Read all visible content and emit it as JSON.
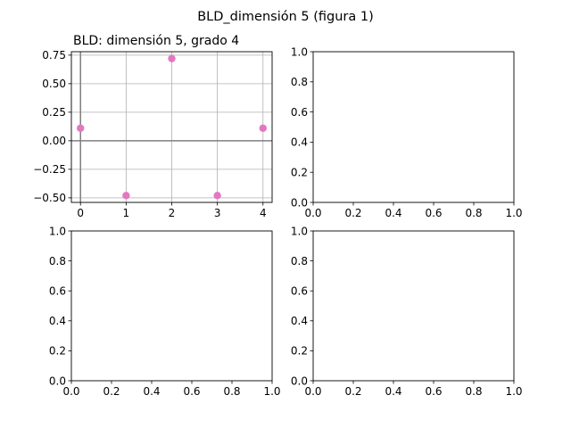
{
  "figure": {
    "suptitle": "BLD_dimensión 5 (figura 1)",
    "background": "#ffffff"
  },
  "chart_data": [
    {
      "type": "scatter",
      "title": "BLD: dimensión 5, grado 4",
      "grid": true,
      "reference_lines": {
        "x": 0,
        "y": 0,
        "color": "#808080"
      },
      "xlim": [
        -0.2,
        4.2
      ],
      "ylim": [
        -0.54,
        0.78
      ],
      "xticks": [
        0,
        1,
        2,
        3,
        4
      ],
      "xtick_labels": [
        "0",
        "1",
        "2",
        "3",
        "4"
      ],
      "yticks": [
        -0.5,
        -0.25,
        0.0,
        0.25,
        0.5,
        0.75
      ],
      "ytick_labels": [
        "−0.50",
        "−0.25",
        "0.00",
        "0.25",
        "0.50",
        "0.75"
      ],
      "series": [
        {
          "color": "#e377c2",
          "x": [
            0,
            1,
            2,
            3,
            4
          ],
          "y": [
            0.11,
            -0.48,
            0.72,
            -0.48,
            0.11
          ]
        }
      ]
    },
    {
      "type": "scatter",
      "empty": true,
      "xlim": [
        0,
        1
      ],
      "ylim": [
        0,
        1
      ],
      "xticks": [
        0,
        0.2,
        0.4,
        0.6,
        0.8,
        1.0
      ],
      "xtick_labels": [
        "0.0",
        "0.2",
        "0.4",
        "0.6",
        "0.8",
        "1.0"
      ],
      "yticks": [
        0,
        0.2,
        0.4,
        0.6,
        0.8,
        1.0
      ],
      "ytick_labels": [
        "0.0",
        "0.2",
        "0.4",
        "0.6",
        "0.8",
        "1.0"
      ],
      "series": []
    },
    {
      "type": "scatter",
      "empty": true,
      "xlim": [
        0,
        1
      ],
      "ylim": [
        0,
        1
      ],
      "xticks": [
        0,
        0.2,
        0.4,
        0.6,
        0.8,
        1.0
      ],
      "xtick_labels": [
        "0.0",
        "0.2",
        "0.4",
        "0.6",
        "0.8",
        "1.0"
      ],
      "yticks": [
        0,
        0.2,
        0.4,
        0.6,
        0.8,
        1.0
      ],
      "ytick_labels": [
        "0.0",
        "0.2",
        "0.4",
        "0.6",
        "0.8",
        "1.0"
      ],
      "series": []
    },
    {
      "type": "scatter",
      "empty": true,
      "xlim": [
        0,
        1
      ],
      "ylim": [
        0,
        1
      ],
      "xticks": [
        0,
        0.2,
        0.4,
        0.6,
        0.8,
        1.0
      ],
      "xtick_labels": [
        "0.0",
        "0.2",
        "0.4",
        "0.6",
        "0.8",
        "1.0"
      ],
      "yticks": [
        0,
        0.2,
        0.4,
        0.6,
        0.8,
        1.0
      ],
      "ytick_labels": [
        "0.0",
        "0.2",
        "0.4",
        "0.6",
        "0.8",
        "1.0"
      ],
      "series": []
    }
  ]
}
